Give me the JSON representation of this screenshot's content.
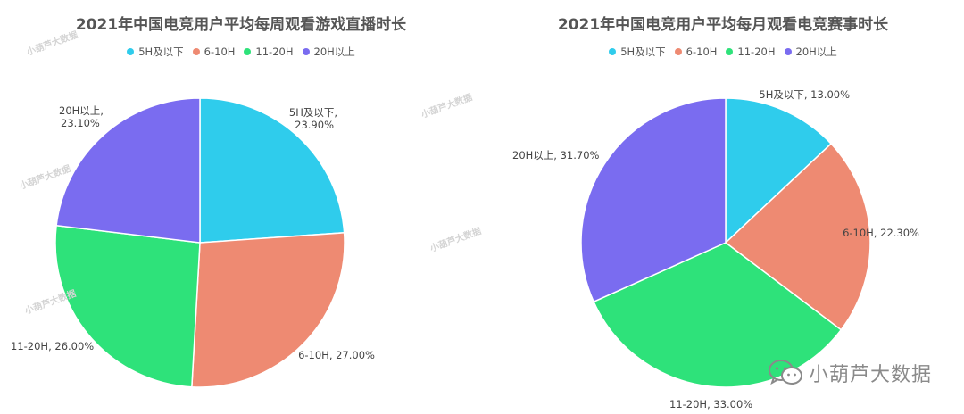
{
  "chart_data": [
    {
      "type": "pie",
      "title": "2021年中国电竞用户平均每周观看游戏直播时长",
      "categories": [
        "5H及以下",
        "6-10H",
        "11-20H",
        "20H以上"
      ],
      "values": [
        23.9,
        27.0,
        26.0,
        23.1
      ],
      "slice_labels": [
        "5H及以下,",
        "6-10H, 27.00%",
        "11-20H, 26.00%",
        "20H以上,"
      ],
      "slice_labels_pct": [
        "23.90%",
        "",
        "",
        "23.10%"
      ],
      "colors": [
        "#2fccec",
        "#ee8a72",
        "#2ee27a",
        "#7a6cf0"
      ],
      "legend_position": "top"
    },
    {
      "type": "pie",
      "title": "2021年中国电竞用户平均每月观看电竞赛事时长",
      "categories": [
        "5H及以下",
        "6-10H",
        "11-20H",
        "20H以上"
      ],
      "values": [
        13.0,
        22.3,
        33.0,
        31.7
      ],
      "slice_labels": [
        "5H及以下, 13.00%",
        "6-10H, 22.30%",
        "11-20H, 33.00%",
        "20H以上, 31.70%"
      ],
      "slice_labels_pct": [
        "",
        "",
        "",
        ""
      ],
      "colors": [
        "#2fccec",
        "#ee8a72",
        "#2ee27a",
        "#7a6cf0"
      ],
      "legend_position": "top"
    }
  ],
  "watermark": {
    "brand_text": "小葫芦大数据",
    "brand_icon": "wechat-icon",
    "tile_text": "小葫芦大数据"
  }
}
